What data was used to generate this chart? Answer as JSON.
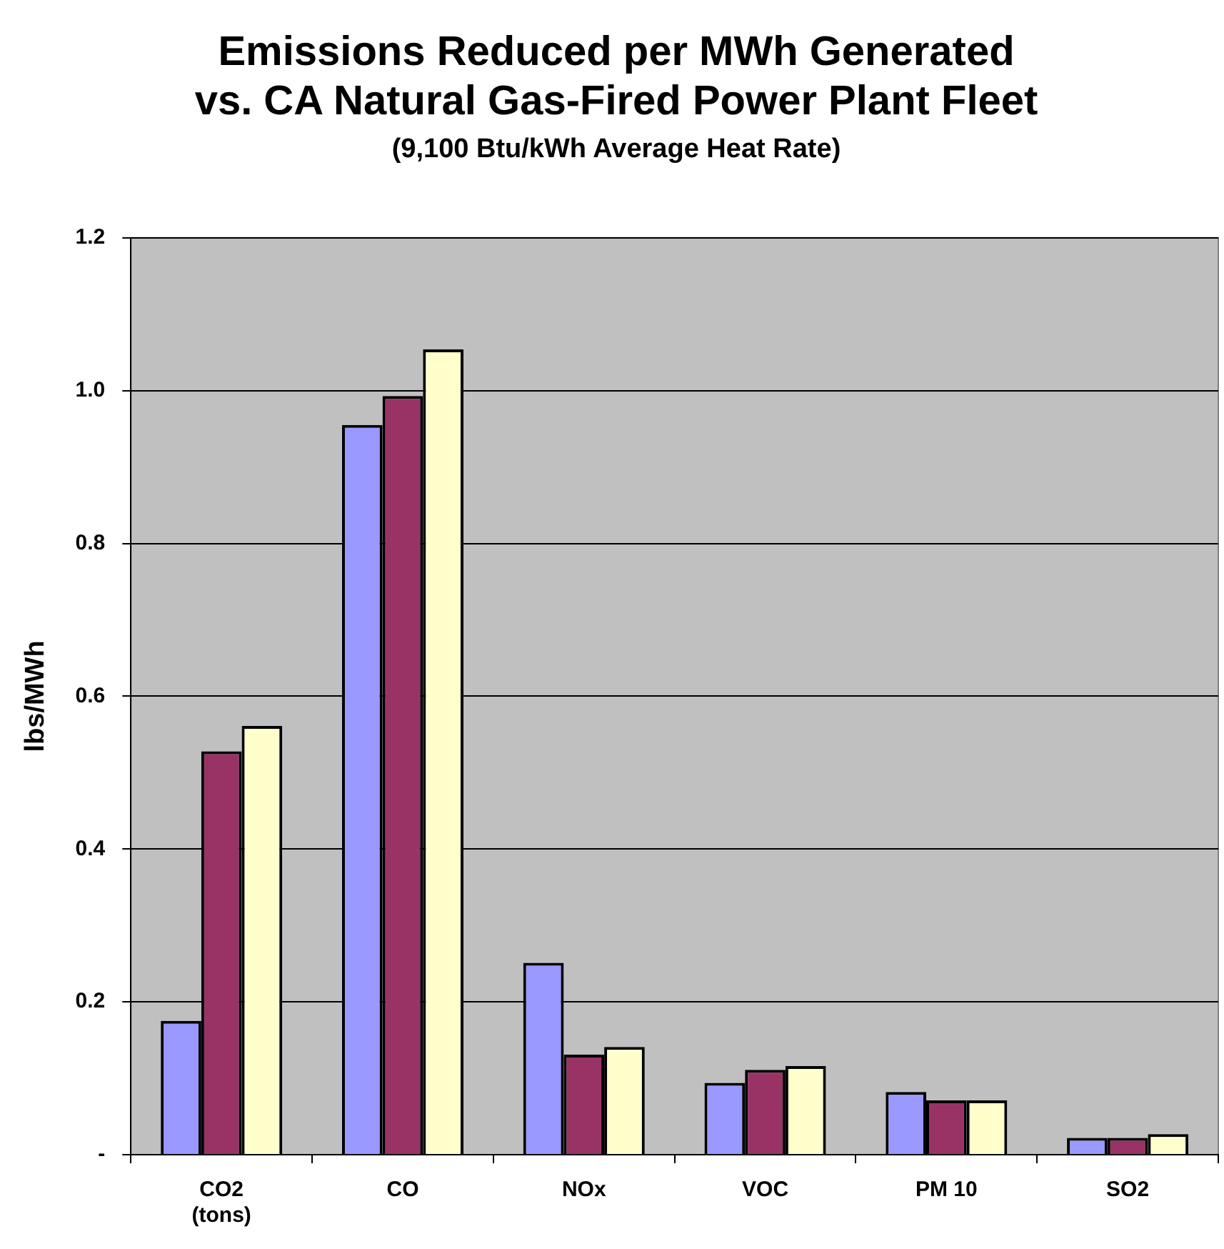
{
  "chart_data": {
    "type": "bar",
    "title": "Emissions Reduced per MWh Generated\nvs. CA Natural Gas-Fired Power Plant Fleet",
    "subtitle": "(9,100 Btu/kWh Average Heat Rate)",
    "ylabel": "lbs/MWh",
    "categories": [
      "CO2\n(tons)",
      "CO",
      "NOx",
      "VOC",
      "PM 10",
      "SO2"
    ],
    "series": [
      {
        "color": "#9999ff",
        "values": [
          0.175,
          0.955,
          0.251,
          0.094,
          0.082,
          0.022
        ]
      },
      {
        "color": "#993366",
        "values": [
          0.528,
          0.993,
          0.131,
          0.111,
          0.071,
          0.022
        ]
      },
      {
        "color": "#ffffcc",
        "values": [
          0.561,
          1.054,
          0.141,
          0.116,
          0.071,
          0.027
        ]
      }
    ],
    "ylim": [
      0,
      1.2
    ],
    "yticks": [
      {
        "value": 0,
        "label": "-"
      },
      0.2,
      0.4,
      0.6,
      0.8,
      {
        "value": 1,
        "label": "1.0"
      },
      1.2
    ],
    "grid": "y",
    "legend": false
  }
}
